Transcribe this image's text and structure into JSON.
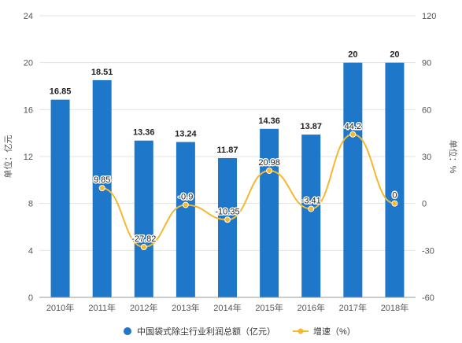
{
  "chart_data": {
    "type": "bar",
    "categories": [
      "2010年",
      "2011年",
      "2012年",
      "2013年",
      "2014年",
      "2015年",
      "2016年",
      "2017年",
      "2018年"
    ],
    "series": [
      {
        "name": "中国袋式除尘行业利润总额（亿元）",
        "type": "bar",
        "axis": "left",
        "values": [
          16.85,
          18.51,
          13.36,
          13.24,
          11.87,
          14.36,
          13.87,
          20,
          20
        ],
        "labels": [
          "16.85",
          "18.51",
          "13.36",
          "13.24",
          "11.87",
          "14.36",
          "13.87",
          "20",
          "20"
        ],
        "color": "#1f77c9"
      },
      {
        "name": "增速（%）",
        "type": "line",
        "axis": "right",
        "values": [
          null,
          9.85,
          -27.82,
          -0.9,
          -10.35,
          20.98,
          -3.41,
          44.2,
          0
        ],
        "labels": [
          "",
          "9.85",
          "-27.82",
          "-0.9",
          "-10.35",
          "20.98",
          "-3.41",
          "44.2",
          "0"
        ],
        "color": "#f5b82e"
      }
    ],
    "y_left": {
      "label": "单位：亿元",
      "min": 0,
      "max": 24,
      "ticks": [
        0,
        4,
        8,
        12,
        16,
        20,
        24
      ]
    },
    "y_right": {
      "label": "单位：%",
      "min": -60,
      "max": 120,
      "ticks": [
        -60,
        -30,
        0,
        30,
        60,
        90,
        120
      ]
    },
    "grid": true,
    "legend_position": "bottom"
  }
}
